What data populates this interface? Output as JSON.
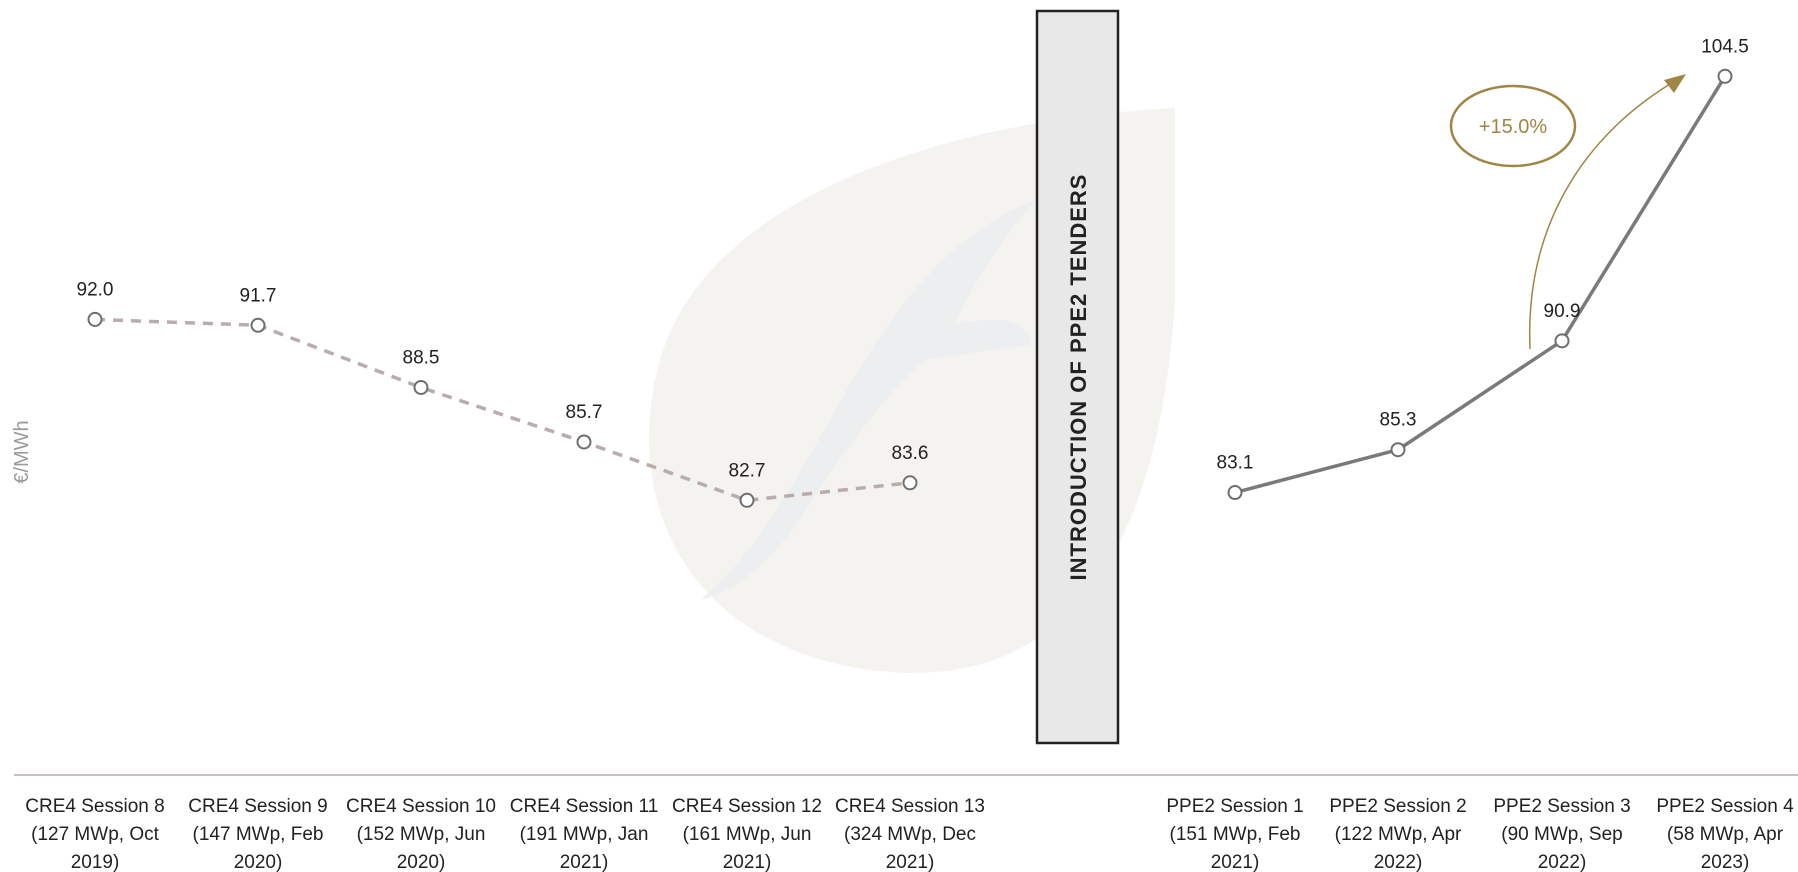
{
  "chart_data": {
    "type": "line",
    "ylabel": "€/MWh",
    "divider_label": "INTRODUCTION OF PPE2 TENDERS",
    "series": [
      {
        "name": "CRE4",
        "style": "dashed",
        "color": "#b8adac",
        "categories": [
          [
            "CRE4 Session 8",
            "(127 MWp, Oct",
            "2019)"
          ],
          [
            "CRE4 Session 9",
            "(147 MWp, Feb",
            "2020)"
          ],
          [
            "CRE4 Session 10",
            "(152 MWp, Jun",
            "2020)"
          ],
          [
            "CRE4 Session 11",
            "(191 MWp, Jan",
            "2021)"
          ],
          [
            "CRE4 Session 12",
            "(161 MWp, Jun",
            "2021)"
          ],
          [
            "CRE4 Session 13",
            "(324 MWp, Dec",
            "2021)"
          ]
        ],
        "values": [
          92.0,
          91.7,
          88.5,
          85.7,
          82.7,
          83.6
        ],
        "labels": [
          "92.0",
          "91.7",
          "88.5",
          "85.7",
          "82.7",
          "83.6"
        ]
      },
      {
        "name": "PPE2",
        "style": "solid",
        "color": "#7a7a7a",
        "categories": [
          [
            "PPE2 Session 1",
            "(151 MWp, Feb",
            "2021)"
          ],
          [
            "PPE2 Session 2",
            "(122 MWp, Apr",
            "2022)"
          ],
          [
            "PPE2 Session 3",
            "(90 MWp, Sep",
            "2022)"
          ],
          [
            "PPE2 Session 4",
            "(58 MWp, Apr",
            "2023)"
          ]
        ],
        "values": [
          83.1,
          85.3,
          90.9,
          104.5
        ],
        "labels": [
          "83.1",
          "85.3",
          "90.9",
          "104.5"
        ]
      }
    ],
    "annotation": {
      "text": "+15.0%",
      "color": "#a08545"
    },
    "colors": {
      "axis": "#c9bfbf",
      "banner_fill": "#e8e8e8",
      "banner_border": "#222222",
      "marker_fill": "#ffffff",
      "marker_stroke": "#6e6e6e",
      "watermark": "#f5f3ef",
      "watermark_leaf": "#eceef0"
    }
  }
}
